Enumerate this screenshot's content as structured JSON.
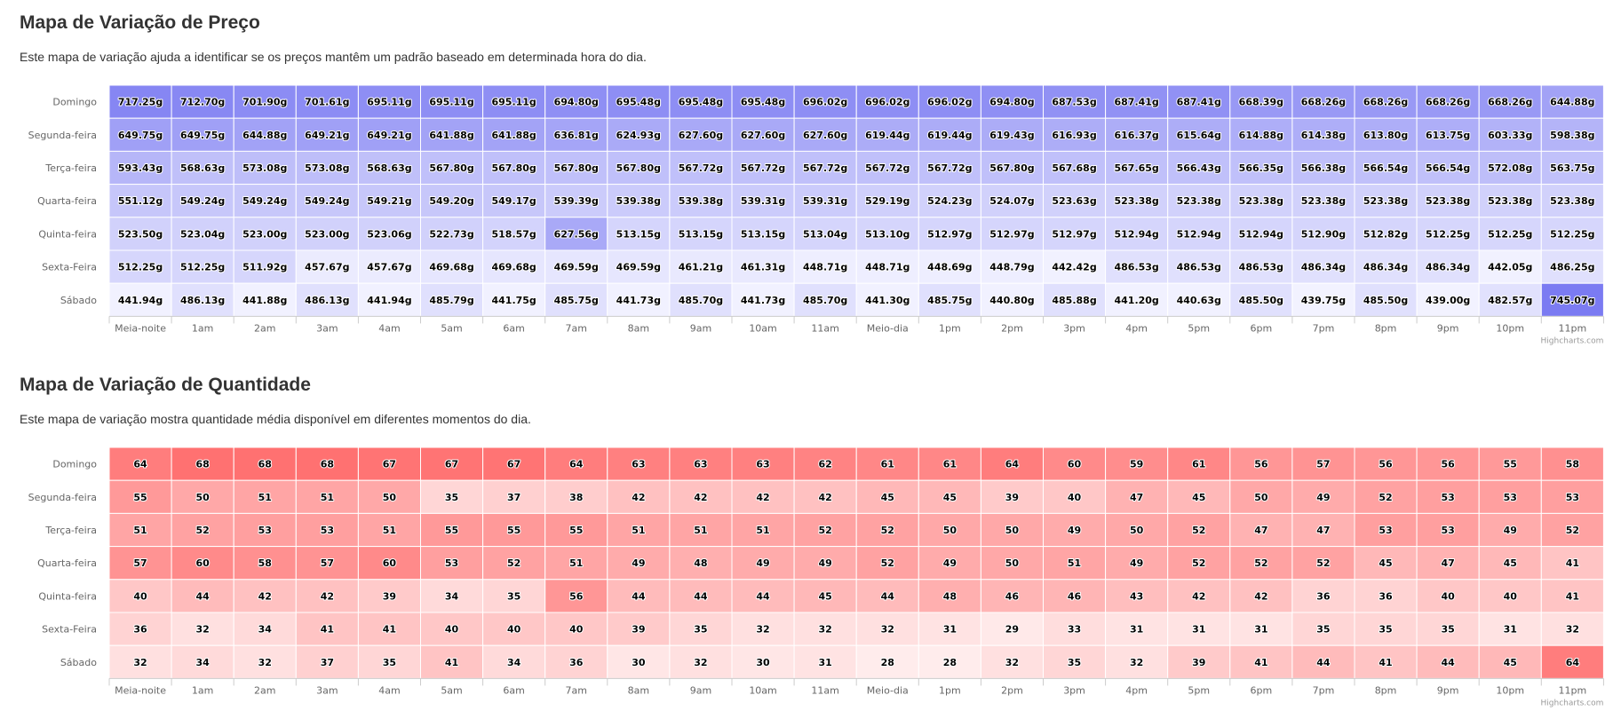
{
  "sections": [
    {
      "title": "Mapa de Variação de Preço",
      "description": "Este mapa de variação ajuda a identificar se os preços mantêm um padrão baseado em determinada hora do dia."
    },
    {
      "title": "Mapa de Variação de Quantidade",
      "description": "Este mapa de variação mostra quantidade média disponível em diferentes momentos do dia."
    }
  ],
  "chart_data": [
    {
      "type": "heatmap",
      "credits": "Highcharts.com",
      "color_min": "#f2f2ff",
      "color_max": "#7b7bf2",
      "value_suffix": "g",
      "value_decimals": 2,
      "categories_x": [
        "Meia-noite",
        "1am",
        "2am",
        "3am",
        "4am",
        "5am",
        "6am",
        "7am",
        "8am",
        "9am",
        "10am",
        "11am",
        "Meio-dia",
        "1pm",
        "2pm",
        "3pm",
        "4pm",
        "5pm",
        "6pm",
        "7pm",
        "8pm",
        "9pm",
        "10pm",
        "11pm"
      ],
      "categories_y": [
        "Domingo",
        "Segunda-feira",
        "Terça-feira",
        "Quarta-feira",
        "Quinta-feira",
        "Sexta-Feira",
        "Sábado"
      ],
      "values": [
        [
          717.25,
          712.7,
          701.9,
          701.61,
          695.11,
          695.11,
          695.11,
          694.8,
          695.48,
          695.48,
          695.48,
          696.02,
          696.02,
          696.02,
          694.8,
          687.53,
          687.41,
          687.41,
          668.39,
          668.26,
          668.26,
          668.26,
          668.26,
          644.88
        ],
        [
          649.75,
          649.75,
          644.88,
          649.21,
          649.21,
          641.88,
          641.88,
          636.81,
          624.93,
          627.6,
          627.6,
          627.6,
          619.44,
          619.44,
          619.43,
          616.93,
          616.37,
          615.64,
          614.88,
          614.38,
          613.8,
          613.75,
          603.33,
          598.38
        ],
        [
          593.43,
          568.63,
          573.08,
          573.08,
          568.63,
          567.8,
          567.8,
          567.8,
          567.8,
          567.72,
          567.72,
          567.72,
          567.72,
          567.72,
          567.8,
          567.68,
          567.65,
          566.43,
          566.35,
          566.38,
          566.54,
          566.54,
          572.08,
          563.75
        ],
        [
          551.12,
          549.24,
          549.24,
          549.24,
          549.21,
          549.2,
          549.17,
          539.39,
          539.38,
          539.38,
          539.31,
          539.31,
          529.19,
          524.23,
          524.07,
          523.63,
          523.38,
          523.38,
          523.38,
          523.38,
          523.38,
          523.38,
          523.38,
          523.38
        ],
        [
          523.5,
          523.04,
          523.0,
          523.0,
          523.06,
          522.73,
          518.57,
          627.56,
          513.15,
          513.15,
          513.15,
          513.04,
          513.1,
          512.97,
          512.97,
          512.97,
          512.94,
          512.94,
          512.94,
          512.9,
          512.82,
          512.25,
          512.25,
          512.25
        ],
        [
          512.25,
          512.25,
          511.92,
          457.67,
          457.67,
          469.68,
          469.68,
          469.59,
          469.59,
          461.21,
          461.31,
          448.71,
          448.71,
          448.69,
          448.79,
          442.42,
          486.53,
          486.53,
          486.53,
          486.34,
          486.34,
          486.34,
          442.05,
          486.25
        ],
        [
          441.94,
          486.13,
          441.88,
          486.13,
          441.94,
          485.79,
          441.75,
          485.75,
          441.73,
          485.7,
          441.73,
          485.7,
          441.3,
          485.75,
          440.8,
          485.88,
          441.2,
          440.63,
          485.5,
          439.75,
          485.5,
          439.0,
          482.57,
          745.07
        ]
      ]
    },
    {
      "type": "heatmap",
      "credits": "Highcharts.com",
      "color_min": "#ffecec",
      "color_max": "#ff7171",
      "value_suffix": "",
      "value_decimals": 0,
      "categories_x": [
        "Meia-noite",
        "1am",
        "2am",
        "3am",
        "4am",
        "5am",
        "6am",
        "7am",
        "8am",
        "9am",
        "10am",
        "11am",
        "Meio-dia",
        "1pm",
        "2pm",
        "3pm",
        "4pm",
        "5pm",
        "6pm",
        "7pm",
        "8pm",
        "9pm",
        "10pm",
        "11pm"
      ],
      "categories_y": [
        "Domingo",
        "Segunda-feira",
        "Terça-feira",
        "Quarta-feira",
        "Quinta-feira",
        "Sexta-Feira",
        "Sábado"
      ],
      "values": [
        [
          64,
          68,
          68,
          68,
          67,
          67,
          67,
          64,
          63,
          63,
          63,
          62,
          61,
          61,
          64,
          60,
          59,
          61,
          56,
          57,
          56,
          56,
          55,
          58
        ],
        [
          55,
          50,
          51,
          51,
          50,
          35,
          37,
          38,
          42,
          42,
          42,
          42,
          45,
          45,
          39,
          40,
          47,
          45,
          50,
          49,
          52,
          53,
          53,
          53
        ],
        [
          51,
          52,
          53,
          53,
          51,
          55,
          55,
          55,
          51,
          51,
          51,
          52,
          52,
          50,
          50,
          49,
          50,
          52,
          47,
          47,
          53,
          53,
          49,
          52
        ],
        [
          57,
          60,
          58,
          57,
          60,
          53,
          52,
          51,
          49,
          48,
          49,
          49,
          52,
          49,
          50,
          51,
          49,
          52,
          52,
          52,
          45,
          47,
          45,
          41
        ],
        [
          40,
          44,
          42,
          42,
          39,
          34,
          35,
          56,
          44,
          44,
          44,
          45,
          44,
          48,
          46,
          46,
          43,
          42,
          42,
          36,
          36,
          40,
          40,
          41
        ],
        [
          36,
          32,
          34,
          41,
          41,
          40,
          40,
          40,
          39,
          35,
          32,
          32,
          32,
          31,
          29,
          33,
          31,
          31,
          31,
          35,
          35,
          35,
          31,
          32
        ],
        [
          32,
          34,
          32,
          37,
          35,
          41,
          34,
          36,
          30,
          32,
          30,
          31,
          28,
          28,
          32,
          35,
          32,
          39,
          41,
          44,
          41,
          44,
          45,
          64
        ]
      ]
    }
  ]
}
